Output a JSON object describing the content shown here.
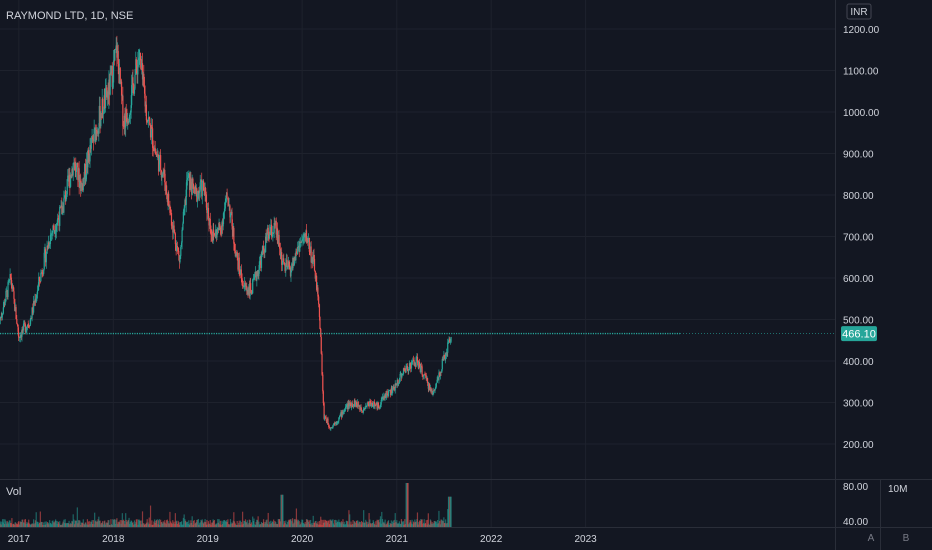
{
  "header": {
    "symbol_line": "RAYMOND LTD, 1D, NSE"
  },
  "price_axis": {
    "currency": "INR",
    "ticks": [
      "1200.00",
      "1100.00",
      "1000.00",
      "900.00",
      "800.00",
      "700.00",
      "600.00",
      "500.00",
      "400.00",
      "300.00",
      "200.00"
    ],
    "last_price_label": "466.10"
  },
  "volume_pane": {
    "label": "Vol",
    "ticks": [
      "80.00",
      "40.00"
    ],
    "scale_label": "10M"
  },
  "time_axis": {
    "ticks": [
      "2017",
      "2018",
      "2019",
      "2020",
      "2021",
      "2022",
      "2023"
    ]
  },
  "corner_buttons": {
    "auto": "A",
    "brand": "B"
  },
  "colors": {
    "background": "#131722",
    "grid": "#1e222d",
    "up": "#26a69a",
    "down": "#ef5350",
    "price_line": "#26a69a",
    "text": "#d1d4dc"
  },
  "chart_data": {
    "type": "line",
    "title": "RAYMOND LTD, 1D, NSE",
    "currency": "INR",
    "ylim": [
      150,
      1230
    ],
    "xlim": [
      "2016-10-20",
      "2024-01-01"
    ],
    "last_price": 466.1,
    "series": [
      {
        "x": [
          "2016-10-20",
          "2016-12-01",
          "2017-01-01",
          "2017-02-15",
          "2017-04-01",
          "2017-05-01",
          "2017-06-15",
          "2017-08-01",
          "2017-09-01",
          "2017-10-01",
          "2017-11-15",
          "2017-12-15",
          "2018-01-15",
          "2018-02-10",
          "2018-03-01",
          "2018-04-10",
          "2018-05-10",
          "2018-06-15",
          "2018-07-15",
          "2018-08-15",
          "2018-09-15",
          "2018-10-15",
          "2018-11-15",
          "2018-12-15",
          "2019-01-20",
          "2019-02-20",
          "2019-03-20",
          "2019-04-20",
          "2019-05-20",
          "2019-06-20",
          "2019-07-20",
          "2019-08-20",
          "2019-09-20",
          "2019-10-20",
          "2019-11-20",
          "2019-12-20",
          "2020-01-20",
          "2020-02-20",
          "2020-03-10",
          "2020-03-25",
          "2020-04-20",
          "2020-05-20",
          "2020-06-20",
          "2020-07-20",
          "2020-08-20",
          "2020-09-20",
          "2020-10-20",
          "2020-11-20",
          "2020-12-20",
          "2021-01-20",
          "2021-02-20",
          "2021-03-20",
          "2021-04-20",
          "2021-05-20",
          "2021-06-20",
          "2021-07-20",
          "2021-08-01"
        ],
        "values": [
          500,
          600,
          460,
          500,
          620,
          700,
          760,
          880,
          820,
          900,
          1000,
          1050,
          1150,
          980,
          1000,
          1140,
          1000,
          900,
          850,
          740,
          640,
          840,
          800,
          820,
          700,
          720,
          800,
          660,
          580,
          570,
          630,
          700,
          720,
          630,
          620,
          680,
          700,
          620,
          500,
          270,
          240,
          260,
          290,
          300,
          285,
          300,
          290,
          320,
          330,
          370,
          390,
          400,
          360,
          320,
          380,
          440,
          466
        ]
      }
    ],
    "volume": {
      "unit": "10M",
      "ticks_shown": [
        80,
        40
      ],
      "notable_spikes": [
        {
          "x": "2019-10-15",
          "value": 66
        },
        {
          "x": "2021-02-10",
          "value": 90
        },
        {
          "x": "2021-07-25",
          "value": 62
        }
      ]
    },
    "x_ticks": [
      "2017",
      "2018",
      "2019",
      "2020",
      "2021",
      "2022",
      "2023"
    ]
  }
}
